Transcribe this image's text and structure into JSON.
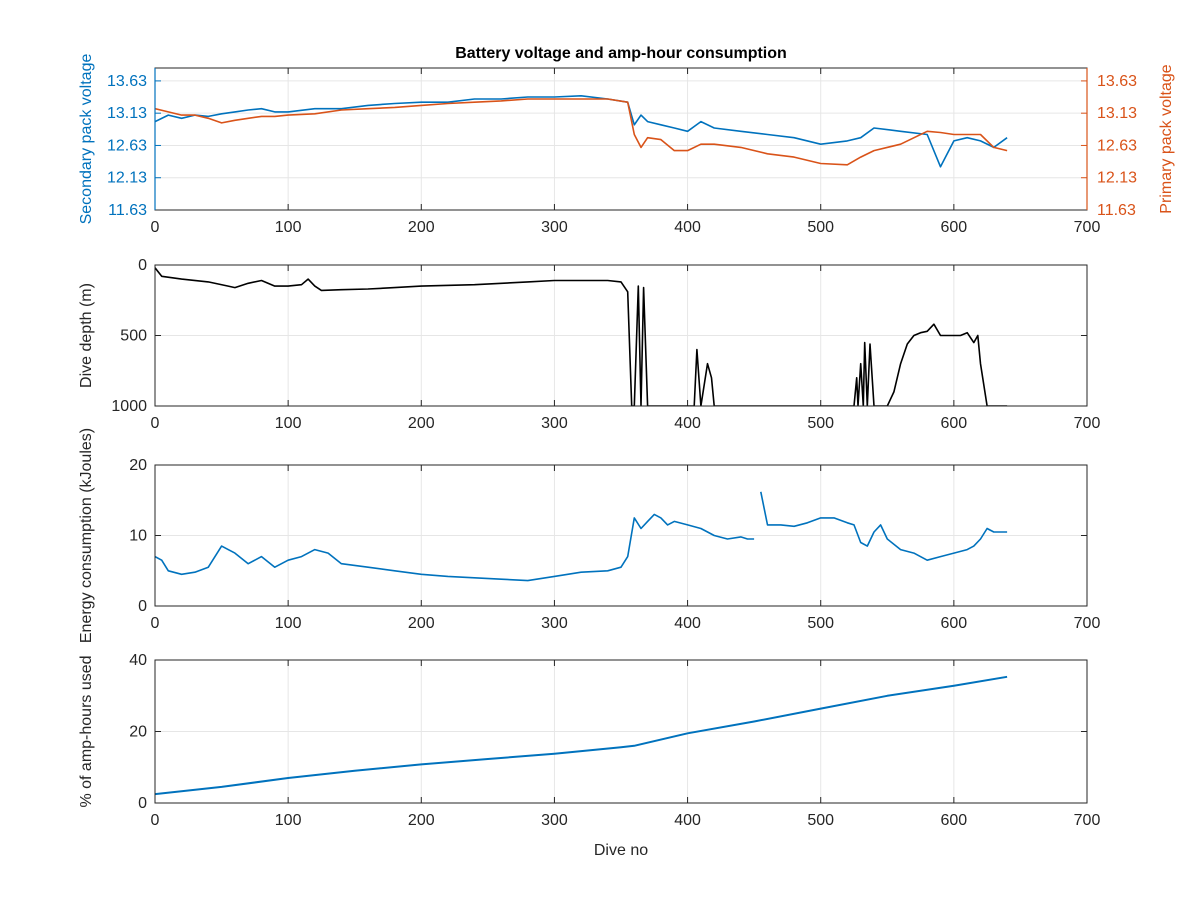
{
  "figure": {
    "title": "Battery voltage and amp-hour consumption",
    "xlabel": "Dive no"
  },
  "colors": {
    "blue": "#0072BD",
    "orange": "#D95319",
    "black": "#000000",
    "axis": "#262626",
    "grid": "#e6e6e6"
  },
  "chart_data": [
    {
      "type": "line",
      "title": "Battery voltage and amp-hour consumption",
      "xlabel": "",
      "ylabel": "Secondary pack voltage",
      "ylabel_right": "Primary pack voltage",
      "xlim": [
        0,
        700
      ],
      "ylim": [
        11.63,
        13.83
      ],
      "ylim_right": [
        11.63,
        13.83
      ],
      "xticks": [
        "0",
        "100",
        "200",
        "300",
        "400",
        "500",
        "600",
        "700"
      ],
      "yticks": [
        "11.63",
        "12.13",
        "12.63",
        "13.13",
        "13.63"
      ],
      "yticks_right": [
        "11.63",
        "12.13",
        "12.63",
        "13.13",
        "13.63"
      ],
      "grid": true,
      "series": [
        {
          "color": "#0072BD",
          "axis": "left",
          "x": [
            0,
            10,
            20,
            30,
            40,
            50,
            60,
            70,
            80,
            90,
            100,
            120,
            140,
            160,
            180,
            200,
            220,
            240,
            260,
            280,
            300,
            320,
            340,
            355,
            360,
            365,
            370,
            380,
            390,
            400,
            410,
            420,
            440,
            460,
            480,
            500,
            520,
            530,
            540,
            560,
            580,
            590,
            600,
            610,
            620,
            630,
            640
          ],
          "y": [
            13.0,
            13.1,
            13.05,
            13.1,
            13.08,
            13.12,
            13.15,
            13.18,
            13.2,
            13.15,
            13.15,
            13.2,
            13.2,
            13.25,
            13.28,
            13.3,
            13.3,
            13.35,
            13.35,
            13.38,
            13.38,
            13.4,
            13.35,
            13.3,
            12.95,
            13.1,
            13.0,
            12.95,
            12.9,
            12.85,
            13.0,
            12.9,
            12.85,
            12.8,
            12.75,
            12.65,
            12.7,
            12.75,
            12.9,
            12.85,
            12.8,
            12.3,
            12.7,
            12.75,
            12.7,
            12.6,
            12.75
          ]
        },
        {
          "color": "#D95319",
          "axis": "right",
          "x": [
            0,
            10,
            20,
            30,
            40,
            50,
            60,
            70,
            80,
            90,
            100,
            120,
            140,
            160,
            180,
            200,
            220,
            240,
            260,
            280,
            300,
            320,
            340,
            355,
            360,
            365,
            370,
            380,
            390,
            400,
            410,
            420,
            440,
            460,
            480,
            500,
            520,
            530,
            540,
            560,
            580,
            590,
            600,
            610,
            620,
            630,
            640
          ],
          "y": [
            13.2,
            13.15,
            13.1,
            13.1,
            13.05,
            12.98,
            13.02,
            13.05,
            13.08,
            13.08,
            13.1,
            13.12,
            13.18,
            13.2,
            13.22,
            13.25,
            13.28,
            13.3,
            13.32,
            13.35,
            13.35,
            13.35,
            13.35,
            13.3,
            12.8,
            12.6,
            12.75,
            12.72,
            12.55,
            12.55,
            12.65,
            12.65,
            12.6,
            12.5,
            12.45,
            12.35,
            12.33,
            12.45,
            12.55,
            12.65,
            12.85,
            12.83,
            12.8,
            12.8,
            12.8,
            12.6,
            12.55
          ]
        }
      ]
    },
    {
      "type": "line",
      "xlabel": "",
      "ylabel": "Dive depth (m)",
      "xlim": [
        0,
        700
      ],
      "ylim": [
        0,
        1000
      ],
      "y_reversed": true,
      "xticks": [
        "0",
        "100",
        "200",
        "300",
        "400",
        "500",
        "600",
        "700"
      ],
      "yticks": [
        "0",
        "500",
        "1000"
      ],
      "grid": true,
      "series": [
        {
          "color": "#000000",
          "x": [
            0,
            5,
            20,
            40,
            55,
            60,
            70,
            80,
            90,
            100,
            110,
            115,
            120,
            125,
            140,
            160,
            180,
            200,
            240,
            280,
            300,
            340,
            350,
            355,
            358,
            360,
            363,
            365,
            367,
            370,
            372,
            380,
            400,
            405,
            407,
            410,
            415,
            418,
            420,
            430,
            450,
            500,
            520,
            525,
            527,
            528,
            530,
            532,
            533,
            535,
            537,
            540,
            550,
            555,
            560,
            565,
            570,
            575,
            580,
            585,
            590,
            600,
            605,
            610,
            615,
            618,
            620,
            625,
            630,
            640
          ],
          "y": [
            20,
            80,
            100,
            120,
            150,
            160,
            130,
            110,
            150,
            150,
            140,
            100,
            150,
            180,
            175,
            170,
            160,
            150,
            140,
            120,
            110,
            110,
            120,
            190,
            1000,
            1000,
            150,
            1000,
            160,
            1000,
            1000,
            1000,
            1000,
            1000,
            600,
            1000,
            700,
            800,
            1000,
            1000,
            1000,
            1000,
            1000,
            1000,
            800,
            1000,
            700,
            1000,
            550,
            1000,
            560,
            1000,
            1000,
            900,
            700,
            560,
            500,
            480,
            470,
            420,
            500,
            500,
            500,
            480,
            550,
            500,
            700,
            1000,
            1000,
            1000
          ]
        }
      ]
    },
    {
      "type": "line",
      "xlabel": "",
      "ylabel": "Energy consumption (kJoules)",
      "xlim": [
        0,
        700
      ],
      "ylim": [
        0,
        20
      ],
      "xticks": [
        "0",
        "100",
        "200",
        "300",
        "400",
        "500",
        "600",
        "700"
      ],
      "yticks": [
        "0",
        "10",
        "20"
      ],
      "grid": true,
      "series": [
        {
          "color": "#0072BD",
          "x": [
            0,
            5,
            10,
            20,
            30,
            40,
            50,
            55,
            60,
            70,
            80,
            90,
            100,
            110,
            120,
            130,
            140,
            160,
            180,
            200,
            220,
            240,
            260,
            280,
            300,
            320,
            340,
            350,
            355,
            360,
            365,
            370,
            375,
            380,
            385,
            390,
            400,
            410,
            420,
            430,
            440,
            445,
            450
          ],
          "y": [
            7.0,
            6.5,
            5.0,
            4.5,
            4.8,
            5.5,
            8.5,
            8.0,
            7.5,
            6.0,
            7.0,
            5.5,
            6.5,
            7.0,
            8.0,
            7.5,
            6.0,
            5.5,
            5.0,
            4.5,
            4.2,
            4.0,
            3.8,
            3.6,
            4.2,
            4.8,
            5.0,
            5.5,
            7.0,
            12.5,
            11.0,
            12.0,
            13.0,
            12.5,
            11.5,
            12.0,
            11.5,
            11.0,
            10.0,
            9.5,
            9.8,
            9.5,
            9.5
          ]
        },
        {
          "color": "#0072BD",
          "x": [
            455,
            460,
            470,
            480,
            490,
            500,
            510,
            520,
            525,
            530,
            535,
            540,
            545,
            550,
            560,
            570,
            580,
            590,
            600,
            610,
            615,
            620,
            625,
            630,
            640
          ],
          "y": [
            16.2,
            11.5,
            11.5,
            11.3,
            11.8,
            12.5,
            12.5,
            11.8,
            11.5,
            9.0,
            8.5,
            10.5,
            11.5,
            9.5,
            8.0,
            7.5,
            6.5,
            7.0,
            7.5,
            8.0,
            8.5,
            9.5,
            11.0,
            10.5,
            10.5
          ]
        }
      ]
    },
    {
      "type": "line",
      "xlabel": "Dive no",
      "ylabel": "% of amp-hours used",
      "xlim": [
        0,
        700
      ],
      "ylim": [
        0,
        40
      ],
      "xticks": [
        "0",
        "100",
        "200",
        "300",
        "400",
        "500",
        "600",
        "700"
      ],
      "yticks": [
        "0",
        "20",
        "40"
      ],
      "grid": true,
      "series": [
        {
          "color": "#0072BD",
          "x": [
            0,
            50,
            100,
            150,
            200,
            250,
            300,
            350,
            360,
            400,
            450,
            500,
            550,
            600,
            640
          ],
          "y": [
            2.5,
            4.5,
            7.0,
            9.0,
            10.8,
            12.3,
            13.8,
            15.6,
            16.0,
            19.5,
            22.8,
            26.4,
            30.0,
            32.8,
            35.3
          ]
        }
      ]
    }
  ]
}
